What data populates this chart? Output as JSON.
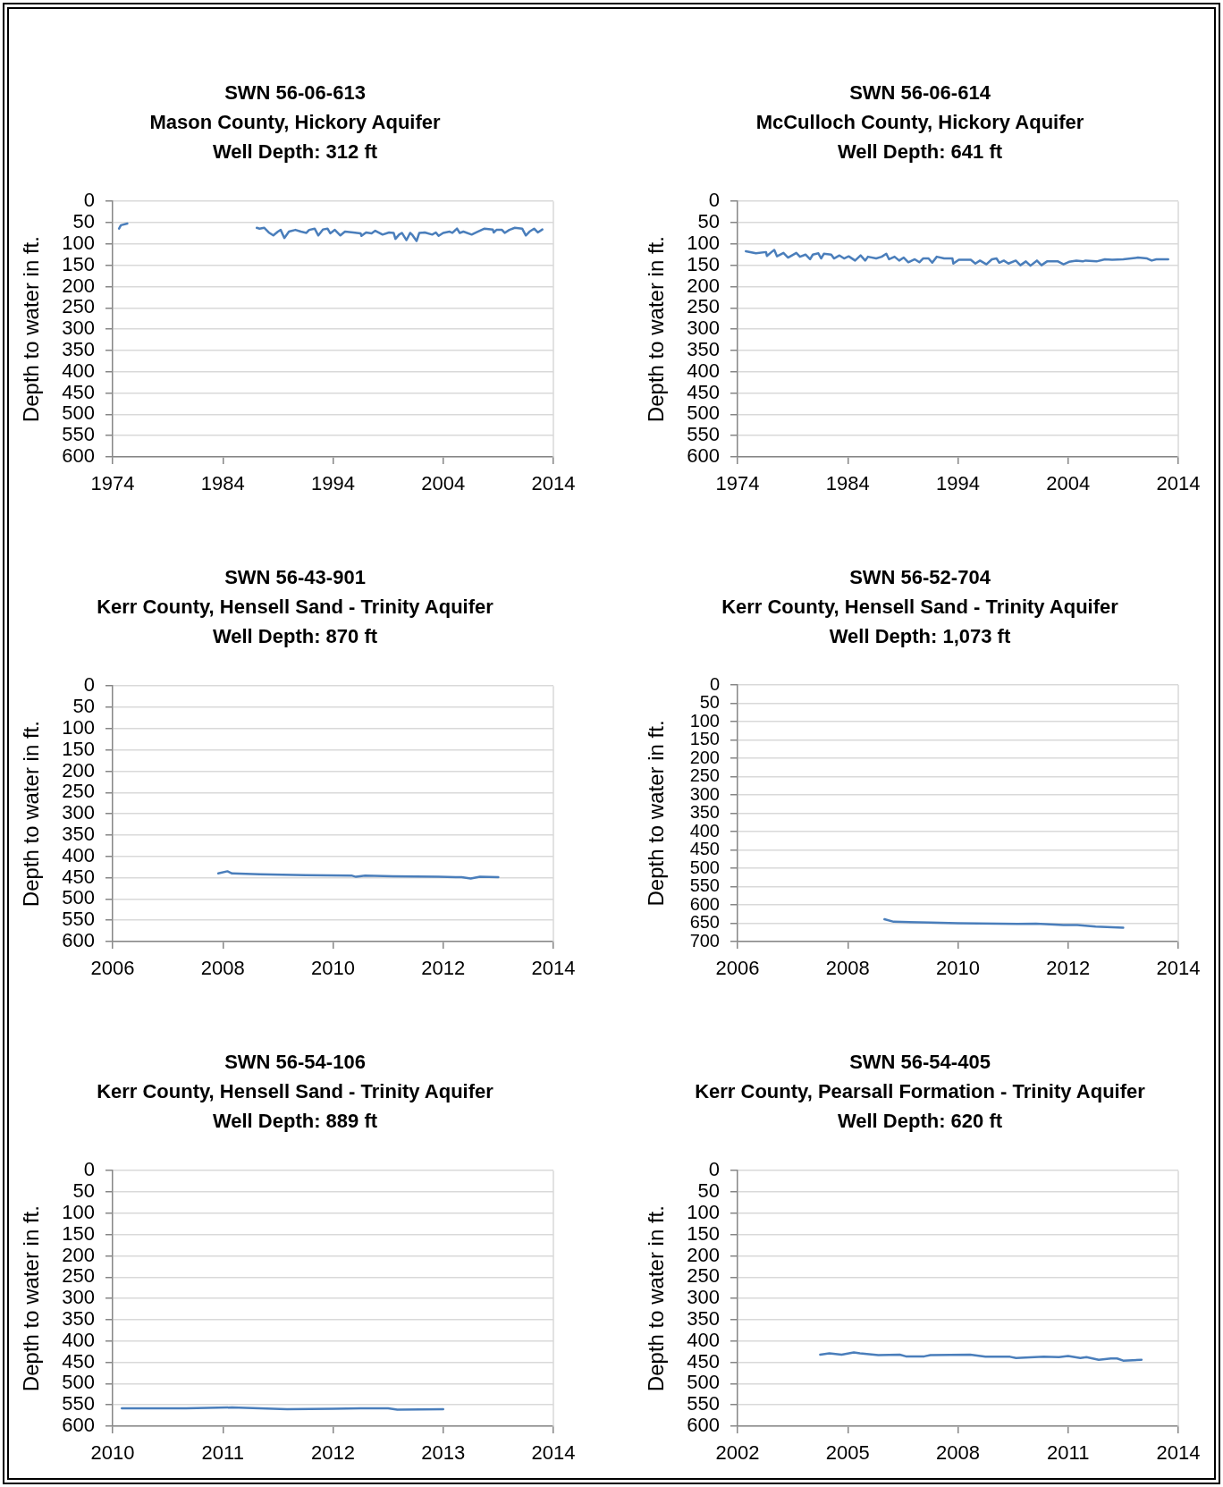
{
  "chart_data": [
    {
      "type": "line",
      "title": "SWN 56-06-613",
      "subtitle": "Mason County, Hickory Aquifer",
      "annotations": [
        "Well Depth: 312 ft"
      ],
      "ylabel": "Depth to water in ft.",
      "grid": "y",
      "xlim": [
        "1974",
        "2014"
      ],
      "xticks": [
        "1974",
        "1984",
        "1994",
        "2004",
        "2014"
      ],
      "ylim": [
        600,
        0
      ],
      "yticks": [
        0,
        50,
        100,
        150,
        200,
        250,
        300,
        350,
        400,
        450,
        500,
        550,
        600
      ],
      "x": [
        "1974-08",
        "1974-10",
        "1975-05",
        "1981-01",
        "1987-02",
        "1987-05",
        "1987-10",
        "1988-03",
        "1988-08",
        "1989-01",
        "1989-04",
        "1989-08",
        "1990-01",
        "1990-08",
        "1991-02",
        "1991-08",
        "1991-11",
        "1992-05",
        "1992-09",
        "1993-02",
        "1993-07",
        "1993-10",
        "1994-03",
        "1994-09",
        "1995-02",
        "1995-11",
        "1996-07",
        "1996-08",
        "1997-01",
        "1997-07",
        "1997-11",
        "1998-07",
        "1999-02",
        "1999-07",
        "1999-09",
        "2000-01",
        "2000-04",
        "2000-09",
        "2001-01",
        "2001-03",
        "2001-08",
        "2001-11",
        "2002-05",
        "2003-01",
        "2003-05",
        "2003-08",
        "2004-01",
        "2004-08",
        "2004-11",
        "2005-04",
        "2005-07",
        "2005-11",
        "2006-08",
        "2007-01",
        "2007-10",
        "2008-07",
        "2008-08",
        "2008-11",
        "2009-05",
        "2009-08",
        "2010-01",
        "2010-07",
        "2011-03",
        "2011-07",
        "2011-11",
        "2012-04",
        "2012-08",
        "2013-01"
      ],
      "series": [
        {
          "color": "#4a7ebb",
          "values": [
            64,
            56,
            52,
            null,
            62,
            64,
            62,
            73,
            80,
            71,
            67,
            86,
            71,
            67,
            71,
            74,
            67,
            64,
            80,
            66,
            64,
            75,
            67,
            80,
            71,
            73,
            75,
            81,
            73,
            75,
            69,
            78,
            73,
            74,
            88,
            78,
            74,
            91,
            74,
            78,
            93,
            74,
            73,
            78,
            73,
            81,
            74,
            71,
            74,
            64,
            74,
            71,
            78,
            73,
            64,
            66,
            73,
            67,
            67,
            74,
            67,
            62,
            64,
            80,
            71,
            64,
            73,
            66
          ]
        }
      ]
    },
    {
      "type": "line",
      "title": "SWN 56-06-614",
      "subtitle": "McCulloch County, Hickory Aquifer",
      "annotations": [
        "Well Depth: 641 ft"
      ],
      "ylabel": "Depth to water in ft.",
      "grid": "y",
      "xlim": [
        "1974",
        "2014"
      ],
      "xticks": [
        "1974",
        "1984",
        "1994",
        "2004",
        "2014"
      ],
      "ylim": [
        600,
        0
      ],
      "yticks": [
        0,
        50,
        100,
        150,
        200,
        250,
        300,
        350,
        400,
        450,
        500,
        550,
        600
      ],
      "x": [
        "1974-10",
        "1975-09",
        "1976-08",
        "1976-09",
        "1977-02",
        "1977-05",
        "1977-08",
        "1978-03",
        "1978-08",
        "1979-05",
        "1979-09",
        "1980-03",
        "1980-08",
        "1980-11",
        "1981-05",
        "1981-08",
        "1981-11",
        "1982-07",
        "1982-10",
        "1983-04",
        "1983-09",
        "1984-02",
        "1984-09",
        "1985-03",
        "1985-08",
        "1985-11",
        "1986-08",
        "1987-02",
        "1987-07",
        "1987-10",
        "1988-04",
        "1988-09",
        "1989-02",
        "1989-07",
        "1990-02",
        "1990-07",
        "1990-11",
        "1991-05",
        "1991-09",
        "1992-02",
        "1992-10",
        "1993-07",
        "1993-08",
        "1994-02",
        "1995-03",
        "1995-08",
        "1996-01",
        "1996-08",
        "1997-02",
        "1997-07",
        "1997-10",
        "1998-03",
        "1998-08",
        "1999-04",
        "1999-09",
        "2000-03",
        "2000-08",
        "2001-03",
        "2001-08",
        "2002-02",
        "2003-02",
        "2003-08",
        "2004-02",
        "2004-10",
        "2005-05",
        "2005-08",
        "2006-08",
        "2007-05",
        "2008-01",
        "2009-01",
        "2010-05",
        "2011-03",
        "2011-08",
        "2012-01",
        "2013-02"
      ],
      "series": [
        {
          "color": "#4a7ebb",
          "values": [
            117,
            122,
            119,
            128,
            119,
            114,
            129,
            121,
            132,
            121,
            130,
            125,
            136,
            125,
            122,
            134,
            123,
            125,
            134,
            127,
            134,
            129,
            139,
            127,
            139,
            130,
            134,
            130,
            123,
            136,
            130,
            139,
            132,
            143,
            136,
            143,
            134,
            134,
            144,
            130,
            134,
            134,
            146,
            137,
            137,
            146,
            139,
            148,
            136,
            134,
            144,
            139,
            146,
            139,
            150,
            141,
            151,
            139,
            150,
            141,
            141,
            148,
            142,
            139,
            141,
            139,
            141,
            136,
            137,
            136,
            132,
            134,
            139,
            136,
            136
          ]
        }
      ]
    },
    {
      "type": "line",
      "title": "SWN 56-43-901",
      "subtitle": "Kerr County, Hensell Sand - Trinity Aquifer",
      "annotations": [
        "Well Depth: 870 ft"
      ],
      "ylabel": "Depth to water in ft.",
      "grid": "y",
      "xlim": [
        "2006",
        "2014"
      ],
      "xticks": [
        "2006",
        "2008",
        "2010",
        "2012",
        "2014"
      ],
      "ylim": [
        600,
        0
      ],
      "yticks": [
        0,
        50,
        100,
        150,
        200,
        250,
        300,
        350,
        400,
        450,
        500,
        550,
        600
      ],
      "x": [
        "2007-12",
        "2008-02",
        "2008-03",
        "2008-09",
        "2009-07",
        "2010-05",
        "2010-06",
        "2010-08",
        "2011-02",
        "2011-12",
        "2012-05",
        "2012-07",
        "2012-09",
        "2013-01"
      ],
      "series": [
        {
          "color": "#4a7ebb",
          "values": [
            440,
            435,
            440,
            442,
            444,
            445,
            448,
            445,
            447,
            448,
            449,
            452,
            448,
            449
          ]
        }
      ]
    },
    {
      "type": "line",
      "title": "SWN 56-52-704",
      "subtitle": "Kerr County, Hensell Sand - Trinity Aquifer",
      "annotations": [
        "Well Depth: 1,073 ft"
      ],
      "ylabel": "Depth to water in ft.",
      "grid": "y",
      "xlim": [
        "2006",
        "2014"
      ],
      "xticks": [
        "2006",
        "2008",
        "2010",
        "2012",
        "2014"
      ],
      "ylim": [
        700,
        0
      ],
      "yticks": [
        0,
        50,
        100,
        150,
        200,
        250,
        300,
        350,
        400,
        450,
        500,
        550,
        600,
        650,
        700
      ],
      "x": [
        "2008-09",
        "2008-11",
        "2009-07",
        "2010-01",
        "2011-02",
        "2011-06",
        "2011-12",
        "2012-03",
        "2012-07",
        "2013-01"
      ],
      "series": [
        {
          "color": "#4a7ebb",
          "values": [
            639,
            646,
            648,
            650,
            652,
            651,
            655,
            655,
            659,
            662
          ]
        }
      ]
    },
    {
      "type": "line",
      "title": "SWN 56-54-106",
      "subtitle": "Kerr County, Hensell Sand - Trinity Aquifer",
      "annotations": [
        "Well Depth: 889 ft"
      ],
      "ylabel": "Depth to water in ft.",
      "grid": "y",
      "xlim": [
        "2010",
        "2014"
      ],
      "xticks": [
        "2010",
        "2011",
        "2012",
        "2013",
        "2014"
      ],
      "ylim": [
        600,
        0
      ],
      "yticks": [
        0,
        50,
        100,
        150,
        200,
        250,
        300,
        350,
        400,
        450,
        500,
        550,
        600
      ],
      "x": [
        "2010-02",
        "2010-09",
        "2011-02",
        "2011-08",
        "2012-01",
        "2012-04",
        "2012-07",
        "2012-08",
        "2013-01"
      ],
      "series": [
        {
          "color": "#4a7ebb",
          "values": [
            558,
            558,
            556,
            560,
            559,
            558,
            558,
            561,
            560
          ]
        }
      ]
    },
    {
      "type": "line",
      "title": "SWN 56-54-405",
      "subtitle": "Kerr County, Pearsall Formation - Trinity Aquifer",
      "annotations": [
        "Well Depth: 620 ft"
      ],
      "ylabel": "Depth to water in ft.",
      "grid": "y",
      "xlim": [
        "2002",
        "2014"
      ],
      "xticks": [
        "2002",
        "2005",
        "2008",
        "2011",
        "2014"
      ],
      "ylim": [
        600,
        0
      ],
      "yticks": [
        0,
        50,
        100,
        150,
        200,
        250,
        300,
        350,
        400,
        450,
        500,
        550,
        600
      ],
      "x": [
        "2004-04",
        "2004-07",
        "2004-11",
        "2005-03",
        "2005-05",
        "2005-11",
        "2006-06",
        "2006-08",
        "2007-02",
        "2007-04",
        "2008-05",
        "2008-10",
        "2009-06",
        "2009-08",
        "2010-05",
        "2010-10",
        "2011-01",
        "2011-05",
        "2011-07",
        "2011-11",
        "2012-03",
        "2012-05",
        "2012-07",
        "2013-01"
      ],
      "series": [
        {
          "color": "#4a7ebb",
          "values": [
            432,
            429,
            432,
            427,
            429,
            433,
            432,
            436,
            436,
            433,
            432,
            437,
            437,
            440,
            437,
            438,
            435,
            440,
            438,
            444,
            441,
            441,
            446,
            444
          ]
        }
      ]
    }
  ]
}
